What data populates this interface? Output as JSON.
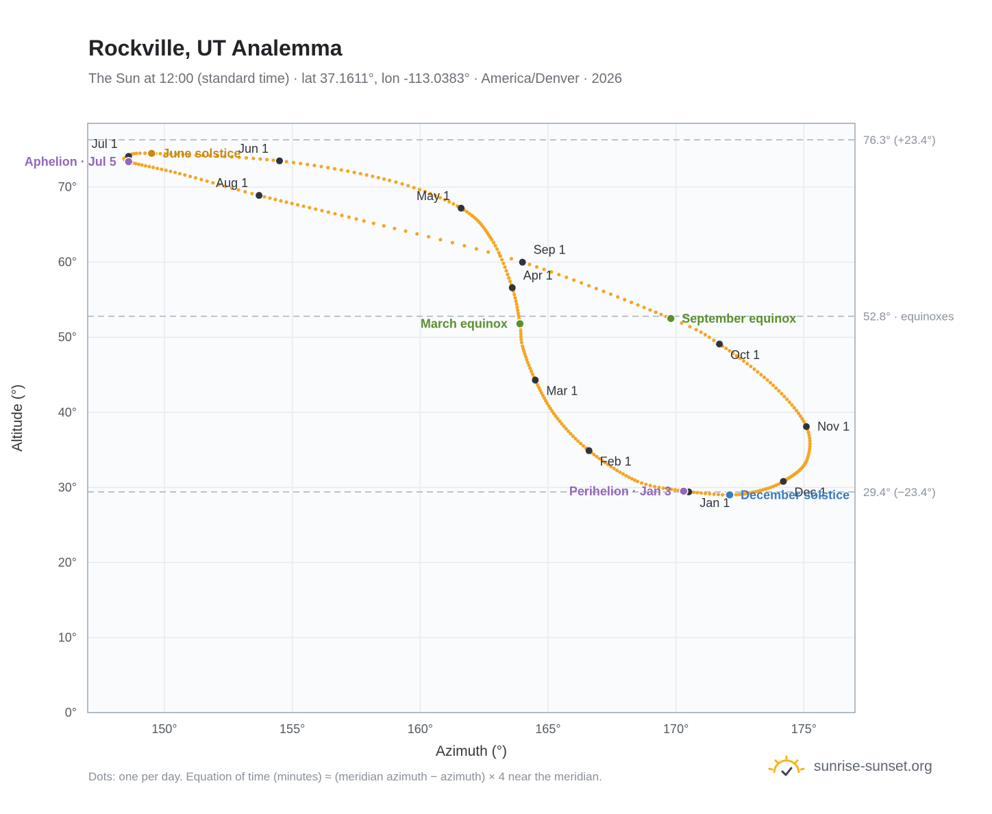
{
  "header": {
    "title": "Rockville, UT Analemma",
    "subtitle": "The Sun at 12:00 (standard time) · lat 37.1611°, lon -113.0383° · America/Denver · 2026"
  },
  "footer": {
    "note": "Dots: one per day. Equation of time (minutes) ≈ (meridian azimuth − azimuth) × 4 near the meridian.",
    "brand": "sunrise-sunset.org",
    "brand_icon": "sun-horizon-icon"
  },
  "colors": {
    "curve": "#f5a623",
    "month_marker": "#2f343b",
    "june_solstice": "#c98a0e",
    "equinox": "#5b8f2e",
    "december_solstice": "#3a7cc0",
    "apsis": "#9467bd",
    "reference_line": "#aab6c0",
    "grid": "#e6ebf0",
    "plot_bg": "#fafbfd"
  },
  "chart_data": {
    "type": "scatter",
    "xlabel": "Azimuth (°)",
    "ylabel": "Altitude (°)",
    "xlim": [
      147,
      177
    ],
    "ylim": [
      0,
      78.5
    ],
    "xticks": [
      150,
      155,
      160,
      165,
      170,
      175
    ],
    "yticks": [
      0,
      10,
      20,
      30,
      40,
      50,
      60,
      70
    ],
    "x_tick_labels": [
      "150°",
      "155°",
      "160°",
      "165°",
      "170°",
      "175°"
    ],
    "y_tick_labels": [
      "0°",
      "10°",
      "20°",
      "30°",
      "40°",
      "50°",
      "60°",
      "70°"
    ],
    "grid": true,
    "series_note": "one dot per day",
    "curve_anchors": [
      {
        "day": 1,
        "x": 170.5,
        "y": 29.4
      },
      {
        "day": 3,
        "x": 170.3,
        "y": 29.5
      },
      {
        "day": 15,
        "x": 168.5,
        "y": 30.8
      },
      {
        "day": 32,
        "x": 166.6,
        "y": 34.9
      },
      {
        "day": 46,
        "x": 165.3,
        "y": 39.5
      },
      {
        "day": 60,
        "x": 164.5,
        "y": 44.3
      },
      {
        "day": 72,
        "x": 164.0,
        "y": 48.8
      },
      {
        "day": 79,
        "x": 163.9,
        "y": 51.8
      },
      {
        "day": 91,
        "x": 163.6,
        "y": 56.6
      },
      {
        "day": 105,
        "x": 162.8,
        "y": 63.0
      },
      {
        "day": 121,
        "x": 161.6,
        "y": 67.2
      },
      {
        "day": 135,
        "x": 158.8,
        "y": 70.9
      },
      {
        "day": 152,
        "x": 154.5,
        "y": 73.5
      },
      {
        "day": 172,
        "x": 149.5,
        "y": 74.5
      },
      {
        "day": 182,
        "x": 148.6,
        "y": 74.1
      },
      {
        "day": 186,
        "x": 148.6,
        "y": 73.4
      },
      {
        "day": 200,
        "x": 150.6,
        "y": 71.8
      },
      {
        "day": 213,
        "x": 153.7,
        "y": 68.9
      },
      {
        "day": 230,
        "x": 157.8,
        "y": 65.5
      },
      {
        "day": 244,
        "x": 164.0,
        "y": 60.0
      },
      {
        "day": 266,
        "x": 169.8,
        "y": 52.5
      },
      {
        "day": 274,
        "x": 171.7,
        "y": 49.1
      },
      {
        "day": 290,
        "x": 173.8,
        "y": 43.6
      },
      {
        "day": 305,
        "x": 175.1,
        "y": 38.1
      },
      {
        "day": 318,
        "x": 175.1,
        "y": 33.5
      },
      {
        "day": 335,
        "x": 174.2,
        "y": 30.8
      },
      {
        "day": 345,
        "x": 173.2,
        "y": 29.5
      },
      {
        "day": 355,
        "x": 172.1,
        "y": 29.0
      },
      {
        "day": 366,
        "x": 170.5,
        "y": 29.4
      }
    ],
    "month_markers": [
      {
        "label": "Jan 1",
        "x": 170.5,
        "y": 29.4,
        "label_pos": "below-right"
      },
      {
        "label": "Feb 1",
        "x": 166.6,
        "y": 34.9,
        "label_pos": "below-right"
      },
      {
        "label": "Mar 1",
        "x": 164.5,
        "y": 44.3,
        "label_pos": "below-right"
      },
      {
        "label": "Apr 1",
        "x": 163.6,
        "y": 56.6,
        "label_pos": "above-right"
      },
      {
        "label": "May 1",
        "x": 161.6,
        "y": 67.2,
        "label_pos": "above-left"
      },
      {
        "label": "Jun 1",
        "x": 154.5,
        "y": 73.5,
        "label_pos": "above-left"
      },
      {
        "label": "Jul 1",
        "x": 148.6,
        "y": 74.1,
        "label_pos": "above-left"
      },
      {
        "label": "Aug 1",
        "x": 153.7,
        "y": 68.9,
        "label_pos": "above-left"
      },
      {
        "label": "Sep 1",
        "x": 164.0,
        "y": 60.0,
        "label_pos": "above-right"
      },
      {
        "label": "Oct 1",
        "x": 171.7,
        "y": 49.1,
        "label_pos": "below-right"
      },
      {
        "label": "Nov 1",
        "x": 175.1,
        "y": 38.1,
        "label_pos": "right"
      },
      {
        "label": "Dec 1",
        "x": 174.2,
        "y": 30.8,
        "label_pos": "below-right"
      }
    ],
    "events": [
      {
        "label": "June solstice",
        "x": 149.5,
        "y": 74.5,
        "color": "#c98a0e",
        "label_pos": "right"
      },
      {
        "label": "Aphelion · Jul 5",
        "x": 148.6,
        "y": 73.4,
        "color": "#9467bd",
        "label_pos": "left"
      },
      {
        "label": "March equinox",
        "x": 163.9,
        "y": 51.8,
        "color": "#5b8f2e",
        "label_pos": "left"
      },
      {
        "label": "September equinox",
        "x": 169.8,
        "y": 52.5,
        "color": "#5b8f2e",
        "label_pos": "right"
      },
      {
        "label": "Perihelion · Jan 3",
        "x": 170.3,
        "y": 29.5,
        "color": "#9467bd",
        "label_pos": "left"
      },
      {
        "label": "December solstice",
        "x": 172.1,
        "y": 29.0,
        "color": "#3a7cc0",
        "label_pos": "right"
      }
    ],
    "reference_lines": [
      {
        "y": 76.3,
        "label": "76.3° (+23.4°)"
      },
      {
        "y": 52.8,
        "label": "52.8° · equinoxes"
      },
      {
        "y": 29.4,
        "label": "29.4° (−23.4°)"
      }
    ]
  }
}
